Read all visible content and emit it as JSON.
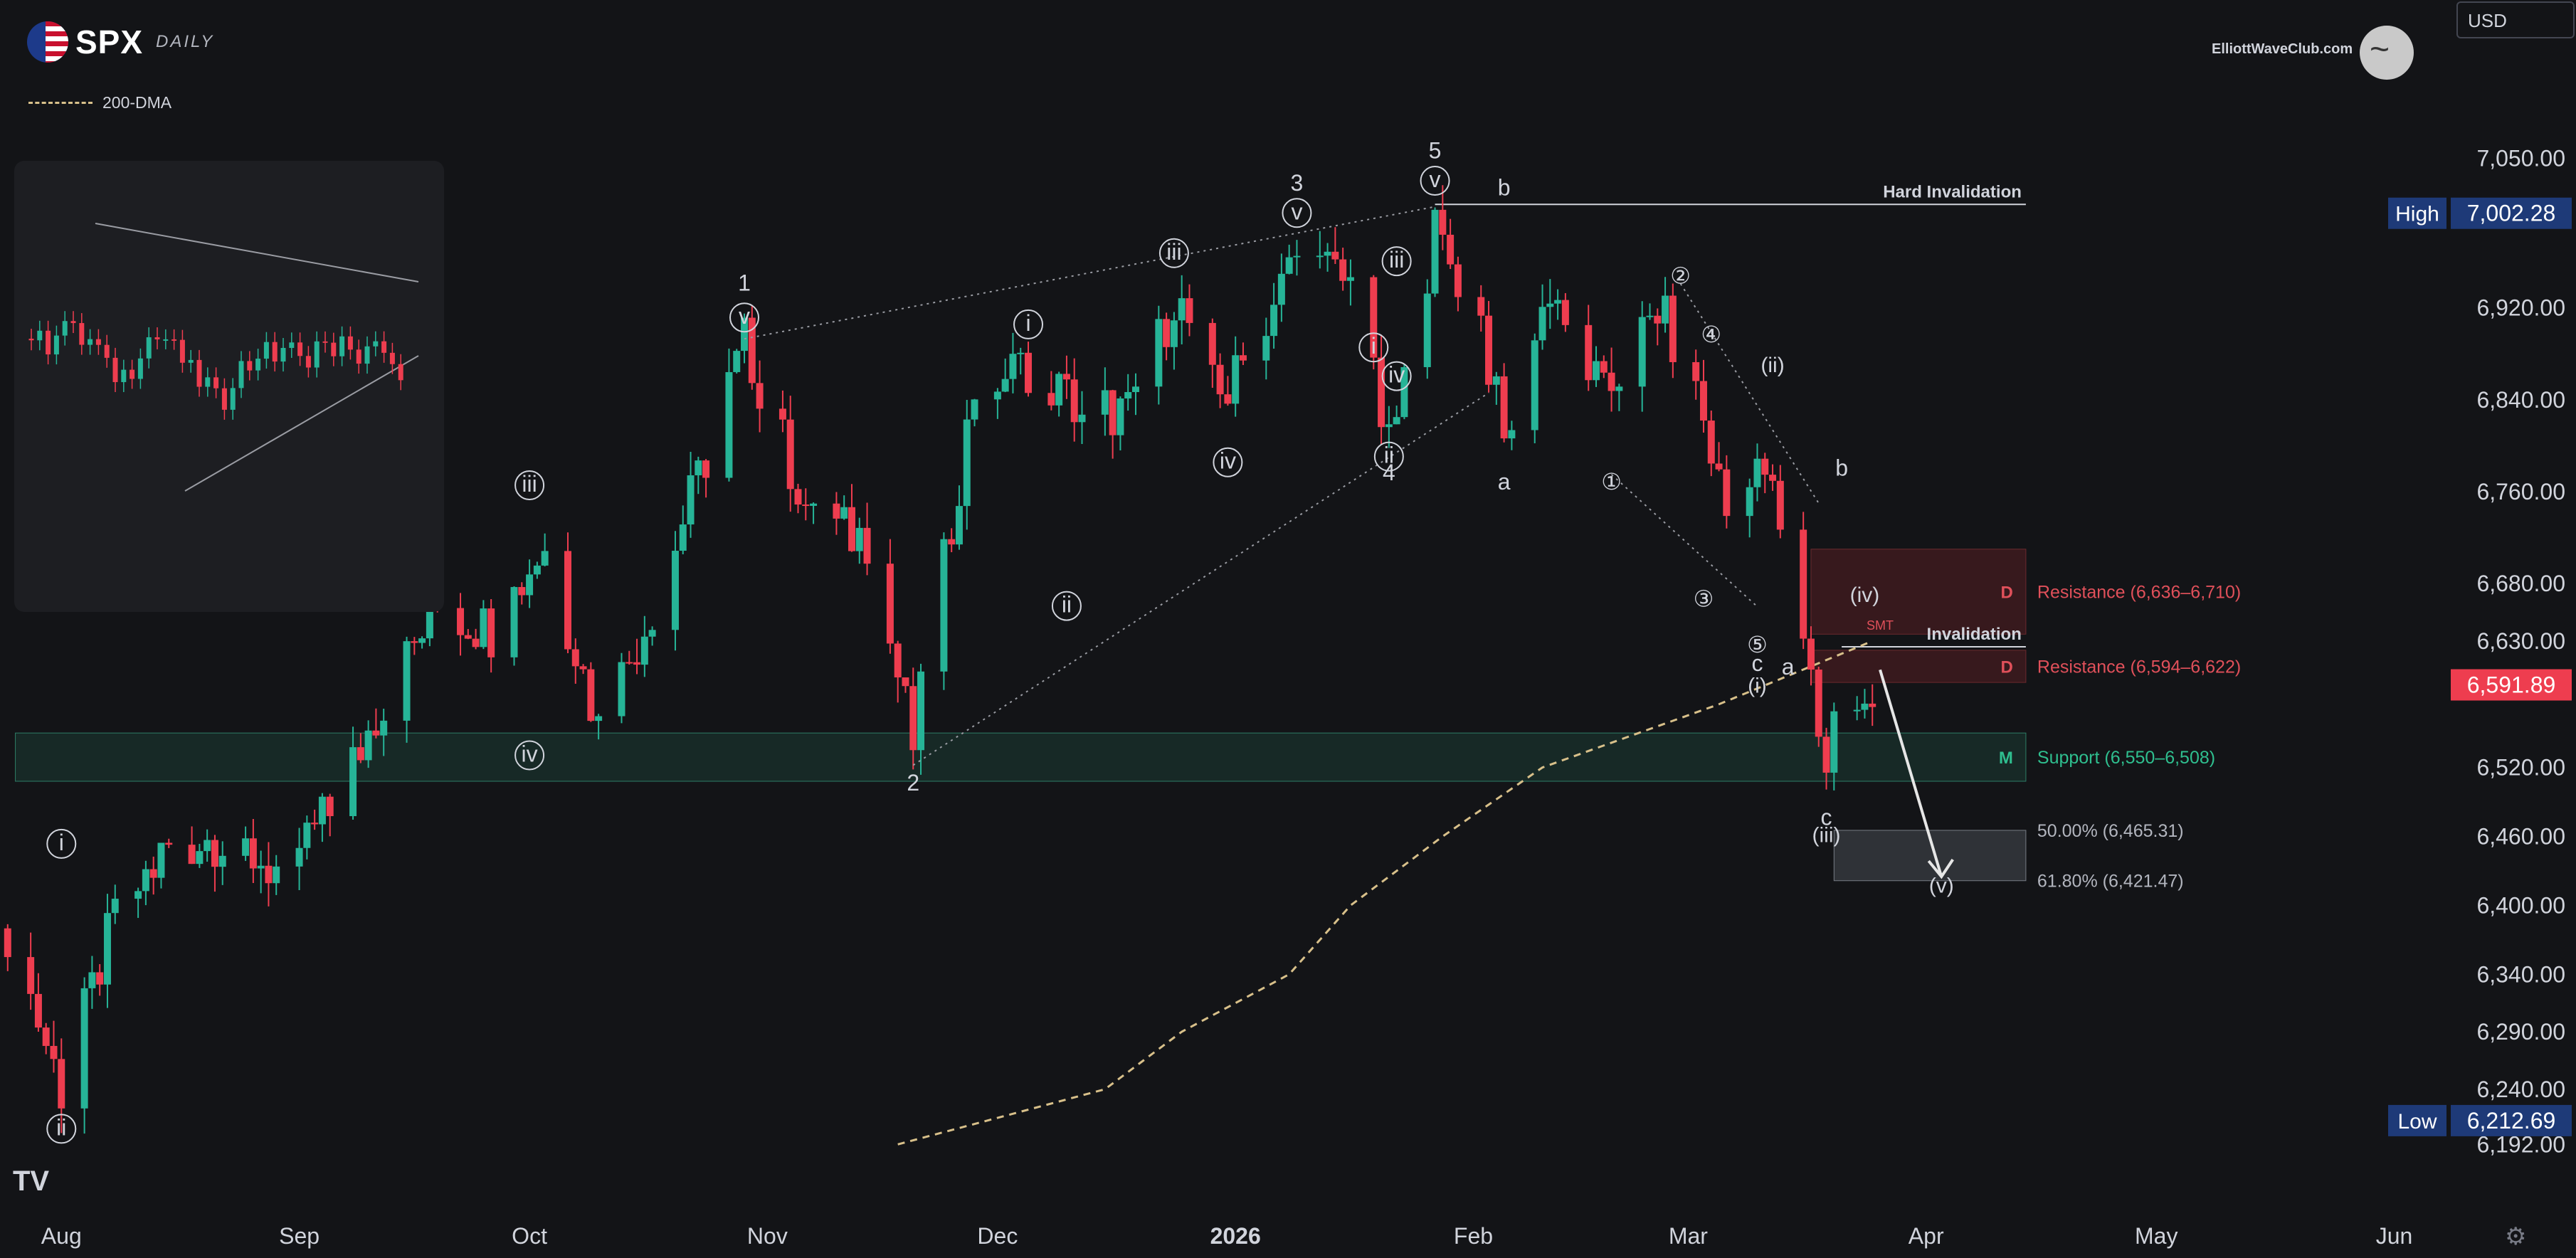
{
  "header": {
    "ticker": "SPX",
    "timeframe": "DAILY",
    "brand": "ElliottWaveClub.com",
    "currency": "USD"
  },
  "legend": {
    "ma_label": "200-DMA"
  },
  "chart_data": {
    "type": "candlestick",
    "title": "SPX DAILY",
    "y_ticks": [
      7050,
      6920,
      6840,
      6760,
      6680,
      6630,
      6520,
      6460,
      6400,
      6340,
      6290,
      6240,
      6192
    ],
    "x_ticks": [
      {
        "label": "Aug",
        "date": "2025-08-01"
      },
      {
        "label": "Sep",
        "date": "2025-09-01"
      },
      {
        "label": "Oct",
        "date": "2025-10-01"
      },
      {
        "label": "Nov",
        "date": "2025-11-01"
      },
      {
        "label": "Dec",
        "date": "2025-12-01"
      },
      {
        "label": "2026",
        "date": "2026-01-01"
      },
      {
        "label": "Feb",
        "date": "2026-02-01"
      },
      {
        "label": "Mar",
        "date": "2026-03-01"
      },
      {
        "label": "Apr",
        "date": "2026-04-01"
      },
      {
        "label": "May",
        "date": "2026-05-01"
      },
      {
        "label": "Jun",
        "date": "2026-06-01"
      }
    ],
    "x_range": [
      "2025-07-24",
      "2026-06-08"
    ],
    "y_range": [
      6160,
      7095
    ],
    "high": {
      "label": "High",
      "value": "7,002.28"
    },
    "low": {
      "label": "Low",
      "value": "6,212.69"
    },
    "last": {
      "value": "6,591.89"
    },
    "closes": [
      {
        "date": "2025-07-25",
        "close": 6380
      },
      {
        "date": "2025-08-01",
        "close": 6240
      },
      {
        "date": "2025-08-08",
        "close": 6390
      },
      {
        "date": "2025-08-15",
        "close": 6450
      },
      {
        "date": "2025-08-22",
        "close": 6460
      },
      {
        "date": "2025-08-29",
        "close": 6430
      },
      {
        "date": "2025-09-05",
        "close": 6480
      },
      {
        "date": "2025-09-12",
        "close": 6580
      },
      {
        "date": "2025-09-19",
        "close": 6660
      },
      {
        "date": "2025-09-26",
        "close": 6640
      },
      {
        "date": "2025-10-03",
        "close": 6715
      },
      {
        "date": "2025-10-10",
        "close": 6555
      },
      {
        "date": "2025-10-17",
        "close": 6660
      },
      {
        "date": "2025-10-24",
        "close": 6790
      },
      {
        "date": "2025-10-29",
        "close": 6890
      },
      {
        "date": "2025-11-07",
        "close": 6730
      },
      {
        "date": "2025-11-14",
        "close": 6720
      },
      {
        "date": "2025-11-20",
        "close": 6540
      },
      {
        "date": "2025-11-28",
        "close": 6850
      },
      {
        "date": "2025-12-05",
        "close": 6870
      },
      {
        "date": "2025-12-12",
        "close": 6830
      },
      {
        "date": "2025-12-19",
        "close": 6830
      },
      {
        "date": "2025-12-24",
        "close": 6930
      },
      {
        "date": "2025-12-31",
        "close": 6845
      },
      {
        "date": "2026-01-09",
        "close": 6965
      },
      {
        "date": "2026-01-16",
        "close": 6940
      },
      {
        "date": "2026-01-21",
        "close": 6795
      },
      {
        "date": "2026-01-27",
        "close": 6985
      },
      {
        "date": "2026-02-02",
        "close": 6910
      },
      {
        "date": "2026-02-05",
        "close": 6800
      },
      {
        "date": "2026-02-11",
        "close": 6940
      },
      {
        "date": "2026-02-18",
        "close": 6840
      },
      {
        "date": "2026-02-25",
        "close": 6920
      },
      {
        "date": "2026-03-02",
        "close": 6850
      },
      {
        "date": "2026-03-06",
        "close": 6740
      },
      {
        "date": "2026-03-11",
        "close": 6780
      },
      {
        "date": "2026-03-16",
        "close": 6640
      },
      {
        "date": "2026-03-19",
        "close": 6520
      },
      {
        "date": "2026-03-21",
        "close": 6605
      },
      {
        "date": "2026-03-23",
        "close": 6560
      },
      {
        "date": "2026-03-25",
        "close": 6592
      }
    ],
    "ma200": [
      {
        "date": "2025-11-18",
        "value": 6192
      },
      {
        "date": "2025-12-15",
        "value": 6240
      },
      {
        "date": "2025-12-25",
        "value": 6290
      },
      {
        "date": "2026-01-08",
        "value": 6340
      },
      {
        "date": "2026-01-16",
        "value": 6400
      },
      {
        "date": "2026-01-28",
        "value": 6460
      },
      {
        "date": "2026-02-10",
        "value": 6520
      },
      {
        "date": "2026-03-05",
        "value": 6575
      },
      {
        "date": "2026-03-25",
        "value": 6630
      }
    ],
    "zones": [
      {
        "label": "Resistance (6,636–6,710)",
        "letter": "D",
        "from": 6636,
        "to": 6710,
        "start": "2026-03-17",
        "end": "2026-04-14",
        "kind": "resistance"
      },
      {
        "label": "Resistance (6,594–6,622)",
        "letter": "D",
        "from": 6594,
        "to": 6622,
        "start": "2026-03-17",
        "end": "2026-04-14",
        "kind": "resistance"
      },
      {
        "label": "Support (6,550–6,508)",
        "letter": "M",
        "from": 6508,
        "to": 6550,
        "start": "2025-07-26",
        "end": "2026-04-14",
        "kind": "support"
      },
      {
        "label": "",
        "from": 6421.47,
        "to": 6465.31,
        "start": "2026-03-20",
        "end": "2026-04-14",
        "kind": "target"
      }
    ],
    "levels": [
      {
        "label": "Hard Invalidation",
        "value": 7010,
        "start": "2026-01-27",
        "end": "2026-04-14"
      },
      {
        "label": "Invalidation",
        "value": 6625,
        "start": "2026-03-21",
        "end": "2026-04-14"
      }
    ],
    "fib_labels": [
      {
        "label": "50.00% (6,465.31)",
        "value": 6465.31
      },
      {
        "label": "61.80% (6,421.47)",
        "value": 6421.47
      }
    ],
    "wave_labels": [
      {
        "t": "1",
        "date": "2025-10-29",
        "price": 6935,
        "circle": false
      },
      {
        "t": "v",
        "date": "2025-10-29",
        "price": 6906,
        "circle": true
      },
      {
        "t": "2",
        "date": "2025-11-20",
        "price": 6500,
        "circle": false
      },
      {
        "t": "3",
        "date": "2026-01-09",
        "price": 7022,
        "circle": false
      },
      {
        "t": "v",
        "date": "2026-01-09",
        "price": 6997,
        "circle": true
      },
      {
        "t": "4",
        "date": "2026-01-21",
        "price": 6770,
        "circle": false
      },
      {
        "t": "5",
        "date": "2026-01-27",
        "price": 7050,
        "circle": false
      },
      {
        "t": "v",
        "date": "2026-01-27",
        "price": 7025,
        "circle": true
      },
      {
        "t": "i",
        "date": "2025-08-01",
        "price": 6448,
        "circle": true
      },
      {
        "t": "ii",
        "date": "2025-08-01",
        "price": 6200,
        "circle": true
      },
      {
        "t": "iii",
        "date": "2025-10-01",
        "price": 6760,
        "circle": true
      },
      {
        "t": "iv",
        "date": "2025-10-01",
        "price": 6525,
        "circle": true
      },
      {
        "t": "i",
        "date": "2025-12-05",
        "price": 6900,
        "circle": true
      },
      {
        "t": "ii",
        "date": "2025-12-10",
        "price": 6655,
        "circle": true
      },
      {
        "t": "iii",
        "date": "2025-12-24",
        "price": 6962,
        "circle": true
      },
      {
        "t": "iv",
        "date": "2025-12-31",
        "price": 6780,
        "circle": true
      },
      {
        "t": "i",
        "date": "2026-01-19",
        "price": 6880,
        "circle": true
      },
      {
        "t": "ii",
        "date": "2026-01-21",
        "price": 6785,
        "circle": true
      },
      {
        "t": "iii",
        "date": "2026-01-22",
        "price": 6955,
        "circle": true
      },
      {
        "t": "iv",
        "date": "2026-01-22",
        "price": 6855,
        "circle": true
      },
      {
        "t": "a",
        "date": "2026-02-05",
        "price": 6762,
        "circle": false
      },
      {
        "t": "b",
        "date": "2026-02-05",
        "price": 7018,
        "circle": false
      },
      {
        "t": "①",
        "date": "2026-02-19",
        "price": 6762,
        "circle": false
      },
      {
        "t": "②",
        "date": "2026-02-28",
        "price": 6941,
        "circle": false
      },
      {
        "t": "③",
        "date": "2026-03-03",
        "price": 6660,
        "circle": false
      },
      {
        "t": "④",
        "date": "2026-03-04",
        "price": 6890,
        "circle": false
      },
      {
        "t": "⑤",
        "date": "2026-03-10",
        "price": 6620,
        "circle": false
      },
      {
        "t": "(ii)",
        "date": "2026-03-12",
        "price": 6864,
        "circle": false
      },
      {
        "t": "b",
        "date": "2026-03-21",
        "price": 6774,
        "circle": false
      },
      {
        "t": "c",
        "date": "2026-03-10",
        "price": 6604,
        "circle": false
      },
      {
        "t": "(i)",
        "date": "2026-03-10",
        "price": 6585,
        "circle": false
      },
      {
        "t": "a",
        "date": "2026-03-14",
        "price": 6601,
        "circle": false
      },
      {
        "t": "(iv)",
        "date": "2026-03-24",
        "price": 6664,
        "circle": false
      },
      {
        "t": "c",
        "date": "2026-03-19",
        "price": 6470,
        "circle": false
      },
      {
        "t": "(iii)",
        "date": "2026-03-19",
        "price": 6455,
        "circle": false
      },
      {
        "t": "(v)",
        "date": "2026-04-03",
        "price": 6411,
        "circle": false
      },
      {
        "t": "SMT",
        "date": "2026-03-26",
        "price": 6640,
        "circle": false
      }
    ]
  }
}
